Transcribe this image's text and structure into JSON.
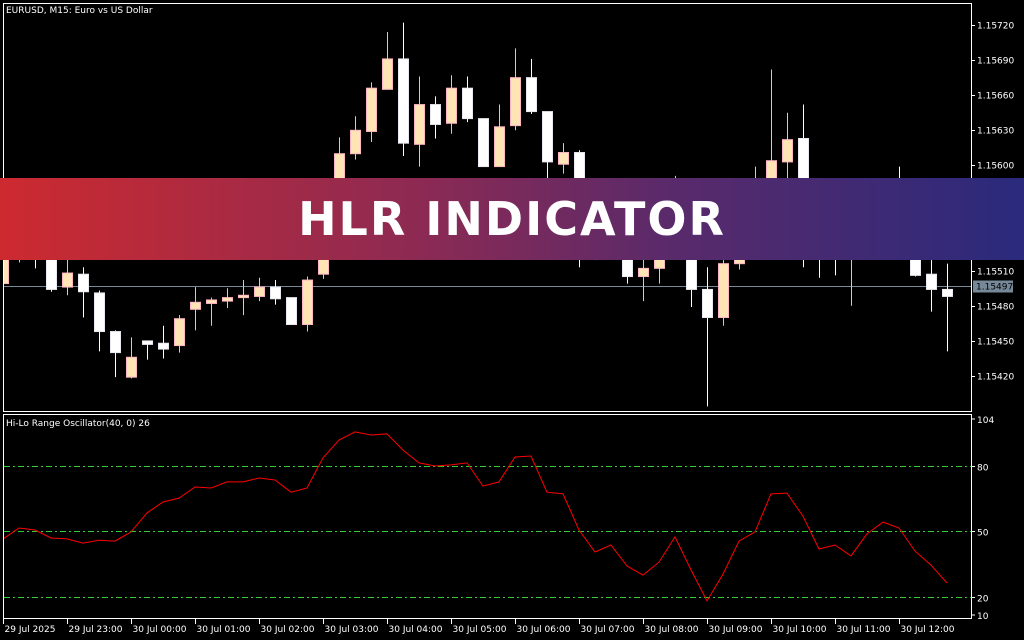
{
  "window_title": "EURUSD, M15:  Euro vs US Dollar",
  "indicator_title": "Hi-Lo Range Oscillator(40, 0) 26",
  "banner": {
    "text": "HLR INDICATOR"
  },
  "colors": {
    "background": "#000000",
    "bull_body": "#ffe4b5",
    "bull_border": "#ffb6c1",
    "bear_body": "#ffffff",
    "oscillator": "#ff0000",
    "levels": "#32cd32",
    "price_line": "#778899",
    "banner_left": "#cd2a2f",
    "banner_right": "#2a2a7c"
  },
  "chart_data": [
    {
      "type": "candlestick",
      "symbol": "EURUSD",
      "timeframe": "M15",
      "price_axis_ticks": [
        "1.15720",
        "1.15690",
        "1.15660",
        "1.15630",
        "1.15600",
        "1.15510",
        "1.15480",
        "1.15450",
        "1.15420"
      ],
      "current_price": "1.15497",
      "time_axis_ticks": [
        "29 Jul 2025",
        "29 Jul 23:00",
        "30 Jul 00:00",
        "30 Jul 01:00",
        "30 Jul 02:00",
        "30 Jul 03:00",
        "30 Jul 04:00",
        "30 Jul 05:00",
        "30 Jul 06:00",
        "30 Jul 07:00",
        "30 Jul 08:00",
        "30 Jul 09:00",
        "30 Jul 10:00",
        "30 Jul 11:00",
        "30 Jul 12:00"
      ],
      "ohlc": [
        [
          1.15499,
          1.15536,
          1.15497,
          1.15532
        ],
        [
          1.15528,
          1.15549,
          1.15517,
          1.15536
        ],
        [
          1.1554,
          1.15553,
          1.15512,
          1.15523
        ],
        [
          1.15521,
          1.15536,
          1.15492,
          1.15494
        ],
        [
          1.15496,
          1.15528,
          1.15489,
          1.15508
        ],
        [
          1.15507,
          1.15513,
          1.1547,
          1.15492
        ],
        [
          1.15491,
          1.15493,
          1.15441,
          1.15458
        ],
        [
          1.15458,
          1.15459,
          1.15419,
          1.1544
        ],
        [
          1.15419,
          1.15453,
          1.15418,
          1.15436
        ],
        [
          1.1545,
          1.1545,
          1.15434,
          1.15447
        ],
        [
          1.15448,
          1.15463,
          1.15435,
          1.15443
        ],
        [
          1.15446,
          1.15472,
          1.1544,
          1.15469
        ],
        [
          1.15477,
          1.15496,
          1.15459,
          1.15483
        ],
        [
          1.15482,
          1.15487,
          1.15463,
          1.15485
        ],
        [
          1.15484,
          1.15495,
          1.15478,
          1.15487
        ],
        [
          1.15487,
          1.15502,
          1.15472,
          1.15489
        ],
        [
          1.15488,
          1.15504,
          1.15484,
          1.15496
        ],
        [
          1.15496,
          1.15502,
          1.15481,
          1.15486
        ],
        [
          1.15487,
          1.15487,
          1.15464,
          1.15464
        ],
        [
          1.15464,
          1.15505,
          1.15458,
          1.15502
        ],
        [
          1.15507,
          1.15545,
          1.15503,
          1.15536
        ],
        [
          1.1557,
          1.15624,
          1.15566,
          1.1561
        ],
        [
          1.1561,
          1.15642,
          1.15605,
          1.1563
        ],
        [
          1.15629,
          1.15671,
          1.1562,
          1.15666
        ],
        [
          1.15665,
          1.15714,
          1.15665,
          1.15691
        ],
        [
          1.15691,
          1.15722,
          1.15608,
          1.15619
        ],
        [
          1.15618,
          1.15676,
          1.15599,
          1.15652
        ],
        [
          1.15652,
          1.15659,
          1.15623,
          1.15635
        ],
        [
          1.15636,
          1.15677,
          1.15627,
          1.15666
        ],
        [
          1.15666,
          1.15676,
          1.15637,
          1.1564
        ],
        [
          1.1564,
          1.1564,
          1.15599,
          1.15599
        ],
        [
          1.15599,
          1.15652,
          1.15599,
          1.15633
        ],
        [
          1.15634,
          1.157,
          1.1563,
          1.15675
        ],
        [
          1.15675,
          1.15691,
          1.15644,
          1.15646
        ],
        [
          1.15646,
          1.15646,
          1.15587,
          1.15603
        ],
        [
          1.15601,
          1.15619,
          1.15593,
          1.15611
        ],
        [
          1.15611,
          1.15613,
          1.15513,
          1.15575
        ],
        [
          1.15557,
          1.15575,
          1.15519,
          1.15566
        ],
        [
          1.15557,
          1.1557,
          1.15523,
          1.1554
        ],
        [
          1.15536,
          1.15545,
          1.15499,
          1.15505
        ],
        [
          1.15505,
          1.15528,
          1.15484,
          1.15512
        ],
        [
          1.15512,
          1.15536,
          1.15499,
          1.15528
        ],
        [
          1.15532,
          1.15591,
          1.15523,
          1.15549
        ],
        [
          1.15545,
          1.15553,
          1.15479,
          1.15494
        ],
        [
          1.15494,
          1.15513,
          1.15394,
          1.1547
        ],
        [
          1.1547,
          1.15519,
          1.15463,
          1.15516
        ],
        [
          1.15516,
          1.15532,
          1.15511,
          1.15523
        ],
        [
          1.15553,
          1.15599,
          1.15528,
          1.1557
        ],
        [
          1.15562,
          1.15682,
          1.15553,
          1.15604
        ],
        [
          1.15603,
          1.15645,
          1.15587,
          1.15622
        ],
        [
          1.15623,
          1.15652,
          1.15513,
          1.15562
        ],
        [
          1.15557,
          1.1557,
          1.15504,
          1.15536
        ],
        [
          1.15549,
          1.15562,
          1.15506,
          1.15536
        ],
        [
          1.15528,
          1.15557,
          1.1548,
          1.15545
        ],
        [
          1.1554,
          1.15549,
          1.15528,
          1.15536
        ],
        [
          1.15536,
          1.15545,
          1.15523,
          1.15532
        ],
        [
          1.15545,
          1.15599,
          1.15521,
          1.15528
        ],
        [
          1.15528,
          1.15536,
          1.15505,
          1.15506
        ],
        [
          1.15507,
          1.15519,
          1.15475,
          1.15494
        ],
        [
          1.15494,
          1.15516,
          1.15441,
          1.15488
        ]
      ]
    },
    {
      "type": "line",
      "name": "Hi-Lo Range Oscillator(40, 0)",
      "ylim": [
        10,
        104
      ],
      "y_axis_ticks": [
        "104",
        "80",
        "50",
        "20",
        "10"
      ],
      "levels": [
        20,
        50,
        80
      ],
      "values": [
        46.6,
        51.6,
        50.7,
        47,
        46.6,
        44.7,
        46,
        45.6,
        49.8,
        58.5,
        63.5,
        65.3,
        70.4,
        69.9,
        72.7,
        72.7,
        74.5,
        73.6,
        68,
        69.9,
        83.7,
        91.9,
        95.6,
        94.2,
        94.7,
        87.3,
        81.4,
        80,
        80.5,
        81.4,
        70.8,
        72.7,
        84.1,
        84.6,
        68,
        67.2,
        50.7,
        40.6,
        43.8,
        34.2,
        30,
        36,
        47.5,
        32.4,
        18.2,
        30.5,
        45.6,
        49.8,
        67.2,
        67.6,
        57,
        42,
        43.8,
        38.8,
        48.9,
        54.3,
        51.6,
        41,
        34.6,
        26.4
      ]
    }
  ]
}
